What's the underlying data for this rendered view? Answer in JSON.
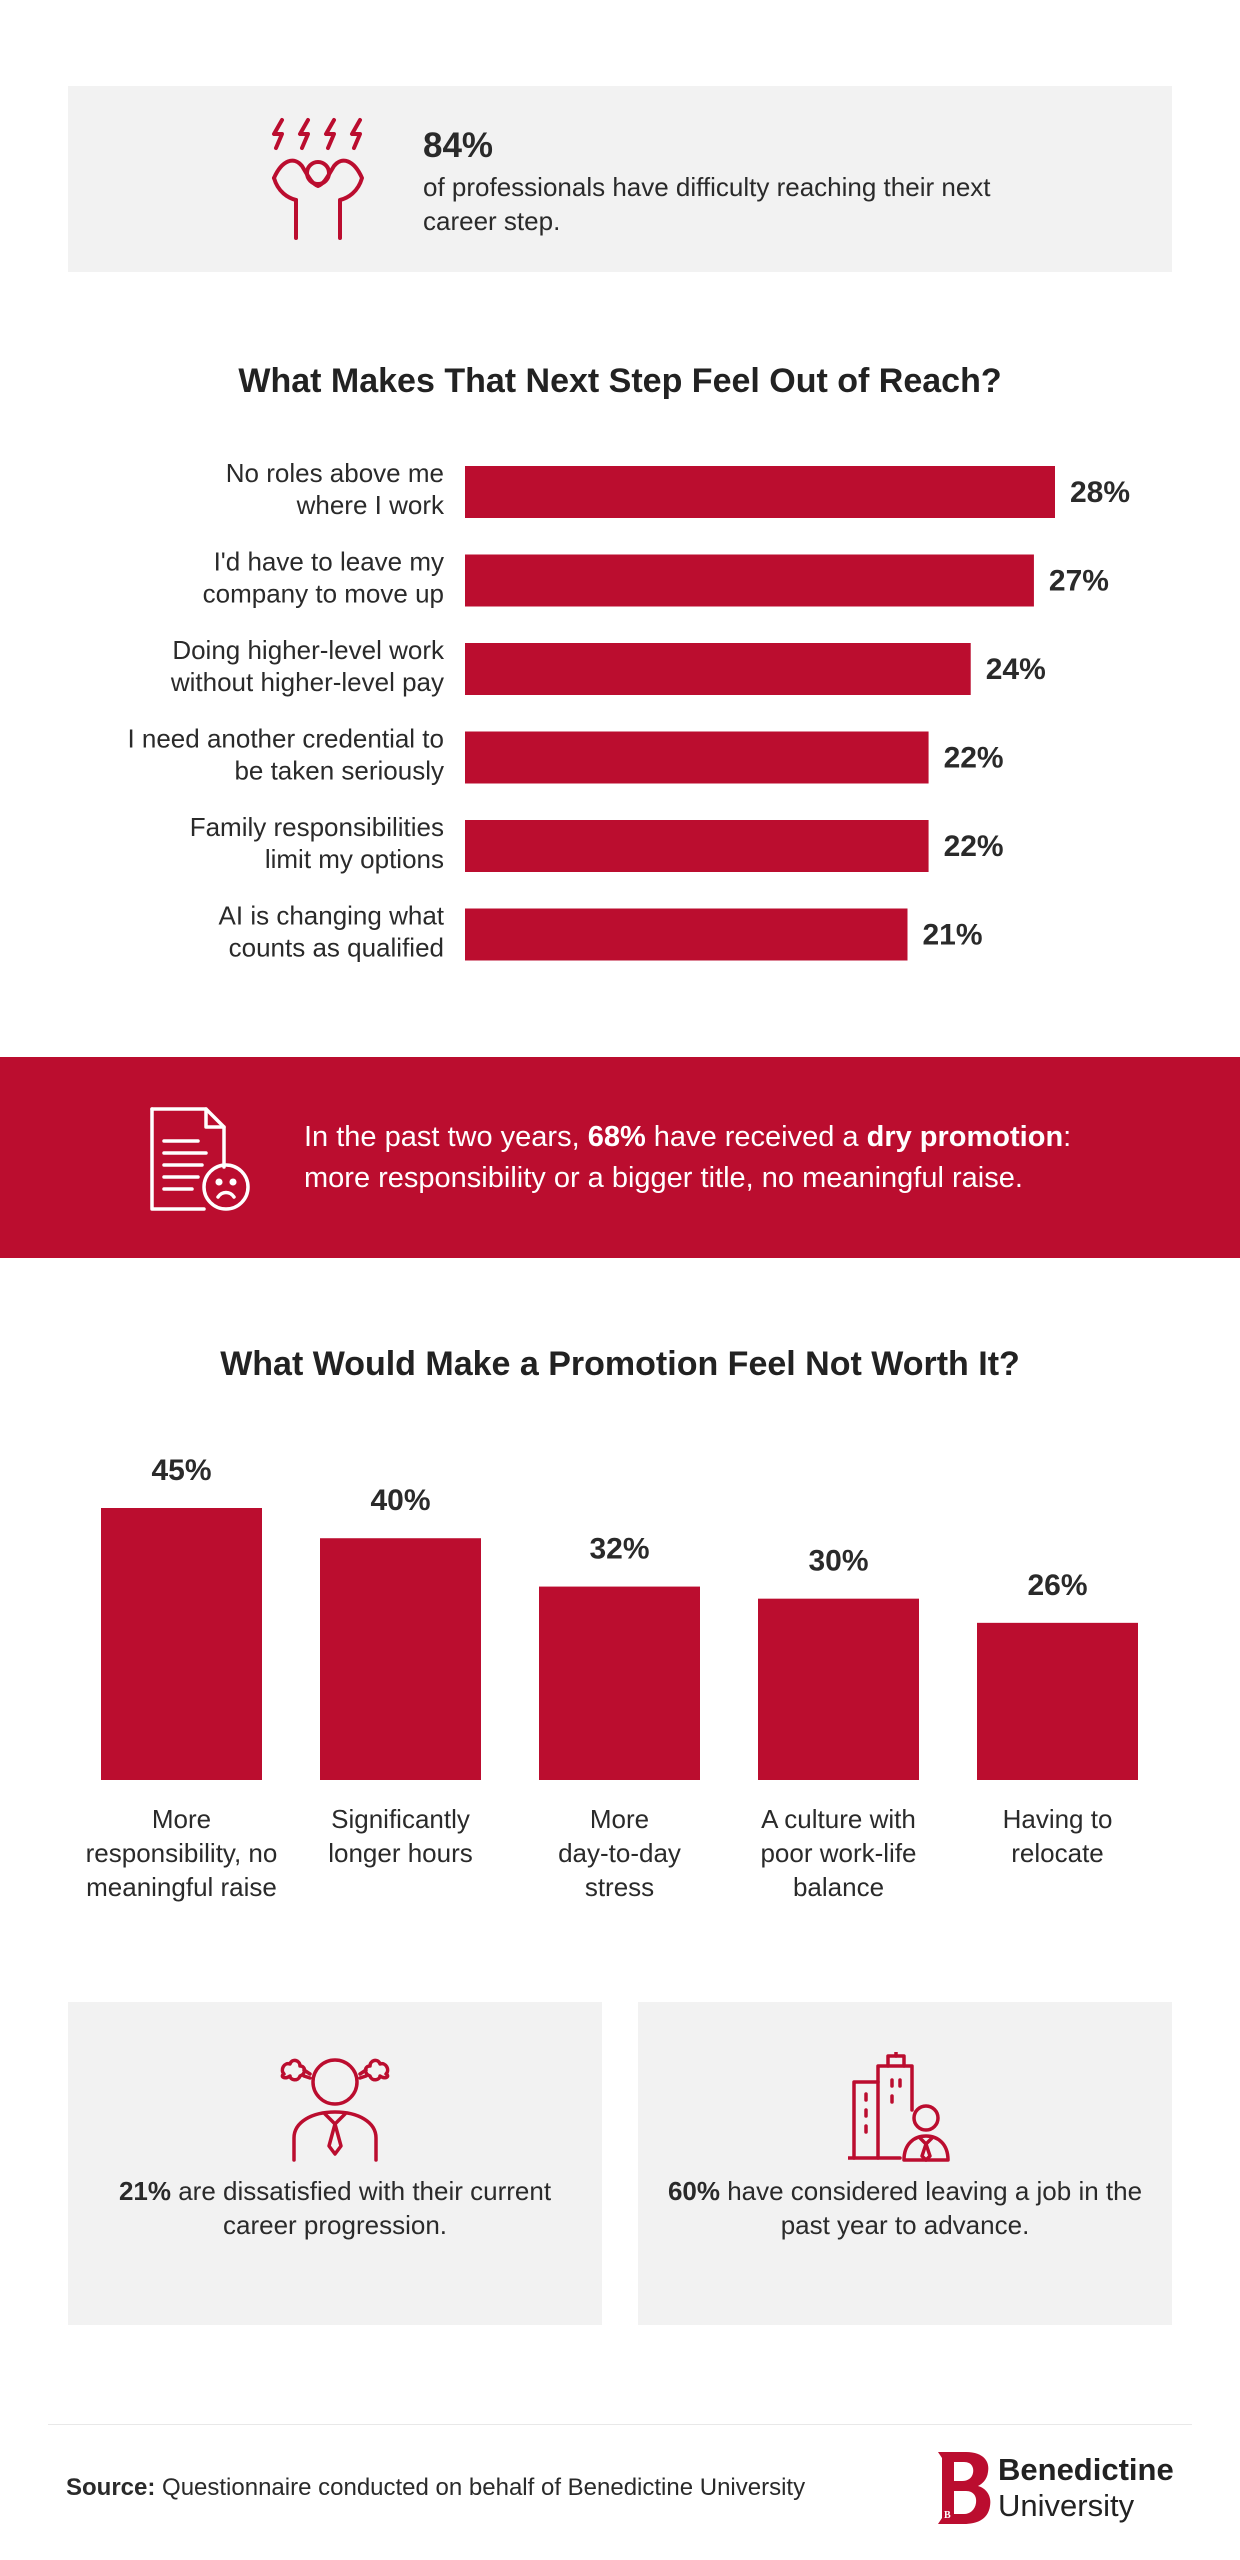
{
  "top_stat": {
    "value": "84%",
    "text": "of professionals have difficulty reaching their next career step.",
    "icon": "stressed-person-icon"
  },
  "promo": {
    "icon": "document-sad-face-icon",
    "text_a": "In the past two years, ",
    "value": "68%",
    "text_b": " have received a ",
    "term": "dry promotion",
    "text_c": ":",
    "text_d": "more responsibility or a bigger title, no meaningful raise."
  },
  "cards": [
    {
      "icon": "frustrated-person-icon",
      "value": "21%",
      "text": " are dissatisfied with their current career progression."
    },
    {
      "icon": "person-leaving-building-icon",
      "value": "60%",
      "text": " have considered leaving a job in the past year to advance."
    }
  ],
  "footer": {
    "source_label": "Source:",
    "source_text": " Questionnaire conducted on behalf of Benedictine University",
    "logo_line1": "Benedictine",
    "logo_line2": "University",
    "logo_mark": "B"
  },
  "colors": {
    "accent": "#bb0d2f",
    "panel": "#f2f2f2",
    "text": "#2a2a2a"
  },
  "chart_data": [
    {
      "type": "bar",
      "orientation": "horizontal",
      "title": "What Makes That Next Step Feel Out of Reach?",
      "categories": [
        [
          "No roles above me",
          "where I work"
        ],
        [
          "I'd have to leave my",
          "company to move up"
        ],
        [
          "Doing higher-level work",
          "without higher-level pay"
        ],
        [
          "I need another credential to",
          "be taken seriously"
        ],
        [
          "Family responsibilities",
          "limit my options"
        ],
        [
          "AI is changing what",
          "counts as qualified"
        ]
      ],
      "values": [
        28,
        27,
        24,
        22,
        22,
        21
      ],
      "value_labels": [
        "28%",
        "27%",
        "24%",
        "22%",
        "22%",
        "21%"
      ],
      "xlim": [
        0,
        28
      ],
      "grid": false,
      "legend": "none"
    },
    {
      "type": "bar",
      "orientation": "vertical",
      "title": "What Would Make a Promotion Feel Not Worth It?",
      "categories": [
        [
          "More",
          "responsibility, no",
          "meaningful raise"
        ],
        [
          "Significantly",
          "longer hours"
        ],
        [
          "More",
          "day-to-day",
          "stress"
        ],
        [
          "A culture with",
          "poor work-life",
          "balance"
        ],
        [
          "Having to",
          "relocate"
        ]
      ],
      "values": [
        45,
        40,
        32,
        30,
        26
      ],
      "value_labels": [
        "45%",
        "40%",
        "32%",
        "30%",
        "26%"
      ],
      "ylim": [
        0,
        45
      ],
      "grid": false,
      "legend": "none"
    }
  ]
}
